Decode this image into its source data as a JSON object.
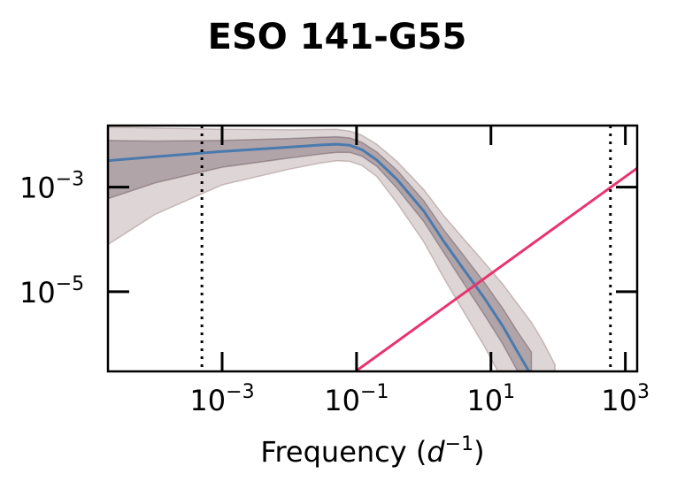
{
  "chart_data": {
    "type": "line",
    "title": "ESO 141-G55",
    "xlabel": {
      "base": "Frequency (",
      "var": "d",
      "exp": "−1",
      "close": ")"
    },
    "ylabel": "",
    "x_scale": "log",
    "y_scale": "log",
    "xlim": [
      2e-05,
      1500
    ],
    "ylim": [
      3e-07,
      0.015
    ],
    "x_ticks": [
      {
        "value": 0.001,
        "base": "10",
        "exp": "−3"
      },
      {
        "value": 0.1,
        "base": "10",
        "exp": "−1"
      },
      {
        "value": 10,
        "base": "10",
        "exp": "1"
      },
      {
        "value": 1000,
        "base": "10",
        "exp": "3"
      }
    ],
    "y_ticks": [
      {
        "value": 0.001,
        "base": "10",
        "exp": "−3"
      },
      {
        "value": 1e-05,
        "base": "10",
        "exp": "−5"
      }
    ],
    "vlines": [
      0.0005,
      600
    ],
    "grid": false,
    "series": [
      {
        "role": "median",
        "color": "#4a7aad",
        "x": [
          2e-05,
          0.0001,
          0.001,
          0.01,
          0.03,
          0.05,
          0.08,
          0.12,
          0.2,
          0.4,
          1,
          2,
          4,
          8,
          15,
          25,
          40
        ],
        "y": [
          0.0032,
          0.0038,
          0.0048,
          0.0058,
          0.0064,
          0.0066,
          0.0063,
          0.0052,
          0.0033,
          0.0014,
          0.00035,
          9e-05,
          2.6e-05,
          7.5e-06,
          2.2e-06,
          7e-07,
          2.5e-07
        ]
      },
      {
        "role": "band-inner",
        "color": "#4a3340",
        "x": [
          2e-05,
          0.0001,
          0.001,
          0.01,
          0.03,
          0.05,
          0.08,
          0.12,
          0.2,
          0.4,
          1,
          2,
          4,
          8,
          15,
          25,
          40
        ],
        "y_lower": [
          0.0006,
          0.0012,
          0.0024,
          0.0036,
          0.0043,
          0.0046,
          0.0046,
          0.0039,
          0.0025,
          0.00095,
          0.00022,
          5.5e-05,
          1.4e-05,
          3.6e-06,
          1e-06,
          3e-07,
          1e-07
        ],
        "y_upper": [
          0.0078,
          0.0076,
          0.0078,
          0.0085,
          0.009,
          0.0092,
          0.0087,
          0.0072,
          0.0047,
          0.0021,
          0.00055,
          0.00015,
          4.8e-05,
          1.5e-05,
          4.8e-06,
          1.7e-06,
          7e-07
        ]
      },
      {
        "role": "band-outer",
        "color": "#7a5a5a",
        "x": [
          2e-05,
          0.0001,
          0.001,
          0.01,
          0.03,
          0.05,
          0.08,
          0.12,
          0.2,
          0.4,
          1,
          2,
          4,
          8,
          15,
          25,
          40,
          60,
          90
        ],
        "y_lower": [
          8e-05,
          0.0003,
          0.0011,
          0.0022,
          0.0029,
          0.0032,
          0.0031,
          0.0026,
          0.0016,
          0.0005,
          9e-05,
          1.8e-05,
          4e-06,
          9e-07,
          2e-07,
          5e-08,
          2e-08,
          1e-08,
          5e-09
        ],
        "y_upper": [
          0.014,
          0.0135,
          0.0128,
          0.0125,
          0.0126,
          0.0127,
          0.0118,
          0.0098,
          0.0066,
          0.0031,
          0.0009,
          0.00028,
          0.0001,
          3.6e-05,
          1.4e-05,
          5.8e-06,
          2.6e-06,
          1.1e-06,
          4e-07
        ]
      },
      {
        "role": "noise-line",
        "color": "#e8336f",
        "x": [
          0.1,
          1500
        ],
        "y": [
          3.1e-07,
          0.0023
        ]
      }
    ]
  }
}
